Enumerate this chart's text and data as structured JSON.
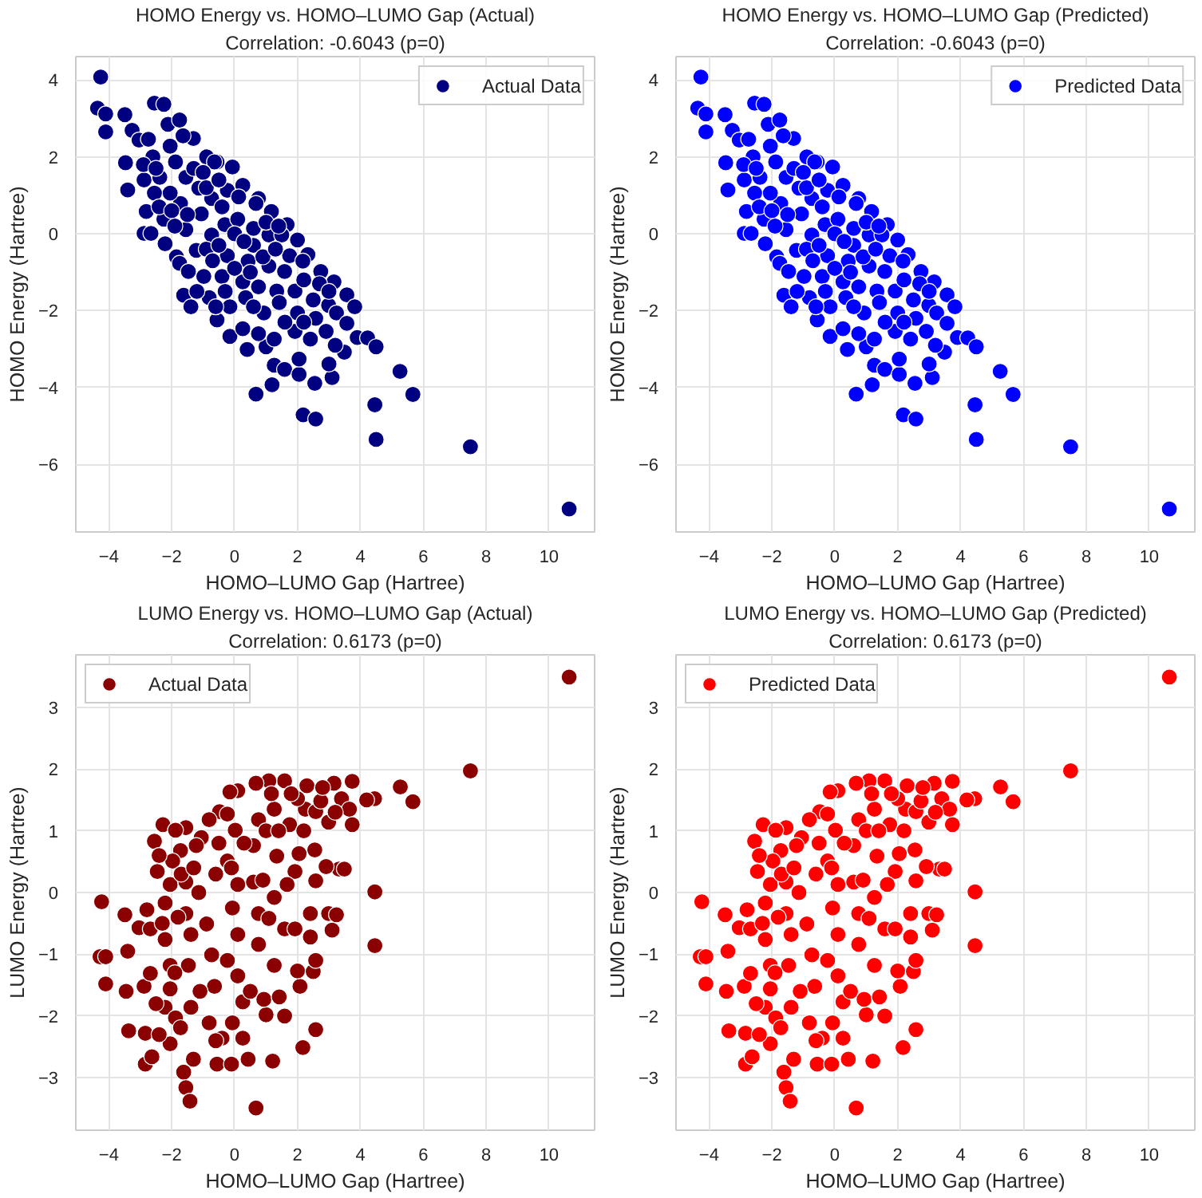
{
  "chart_data": [
    {
      "type": "scatter",
      "title": "HOMO Energy vs. HOMO–LUMO Gap (Actual)",
      "subtitle": "Correlation: -0.6043 (p=0)",
      "xlabel": "HOMO–LUMO Gap (Hartree)",
      "ylabel": "HOMO Energy (Hartree)",
      "xlim": [
        -5.05,
        11.45
      ],
      "ylim": [
        -7.76,
        4.61
      ],
      "xticks": [
        -4,
        -2,
        0,
        2,
        4,
        6,
        8,
        10
      ],
      "yticks": [
        -6,
        -4,
        -2,
        0,
        2,
        4
      ],
      "grid": true,
      "legend": "top right",
      "marker": "circle",
      "series": [
        {
          "name": "Actual Data",
          "color": "#000080",
          "x": [
            -4.26,
            -4.36,
            -4.1,
            -4.1,
            -3.49,
            -3.26,
            -3.47,
            -3.4,
            -3.04,
            -2.74,
            -2.6,
            -2.55,
            -2.25,
            -2.12,
            -2.88,
            -2.81,
            -2.88,
            -2.66,
            -2.25,
            -2.21,
            -1.85,
            -1.75,
            -1.62,
            -1.39,
            -0.81,
            -0.56,
            -0.15,
            0.4,
            0.68,
            1.19,
            1.26,
            1.0,
            1.59,
            2.05,
            2.05,
            2.18,
            2.58,
            2.55,
            3.1,
            3.0,
            3.49,
            3.9,
            4.23,
            4.5,
            4.46,
            4.5,
            5.26,
            5.67,
            7.5,
            10.64,
            -1.75,
            -1.31,
            -0.89,
            -0.56,
            -0.07,
            0.26,
            0.76,
            1.17,
            1.67,
            2.0,
            2.33,
            2.74,
            3.16,
            3.57,
            3.82,
            -1.88,
            -1.55,
            -1.14,
            -0.64,
            -0.23,
            0.13,
            0.68,
            -0.31,
            0.1,
            0.6,
            1.09,
            1.5,
            -0.73,
            -1.22,
            -0.23,
            0.43,
            1.09,
            1.75,
            2.17,
            -0.4,
            0.26,
            0.76,
            1.34,
            1.92,
            -0.15,
            0.35,
            0.93,
            1.42,
            2.0,
            2.5,
            2.99,
            3.24,
            2.58,
            0.26,
            0.76,
            1.26,
            1.92,
            2.41,
            2.91,
            3.57,
            -1.55,
            -1.72,
            -2.05,
            -2.55,
            -2.38,
            -2.05,
            -1.64,
            -1.06,
            -0.73,
            -1.47,
            -0.98,
            0.6,
            1.59,
            -2.9,
            -2.5,
            -2.4,
            -2.0,
            -1.9,
            -1.5,
            -1.3,
            -1.0,
            -0.9,
            -0.5,
            -0.4,
            -0.9,
            -0.5,
            0.0,
            0.3,
            0.0,
            -0.7,
            -1.2,
            -0.3,
            0.5,
            0.9,
            1.3,
            1.0,
            1.4,
            2.2,
            2.7,
            3.0,
            1.6,
            2.2,
            3.2,
            0.6,
            -0.6
          ],
          "values": [
            4.08,
            3.27,
            3.12,
            2.65,
            3.1,
            2.69,
            1.85,
            1.14,
            2.44,
            2.46,
            2.0,
            3.4,
            3.37,
            2.85,
            1.4,
            0.58,
            0.01,
            0.01,
            0.38,
            -0.26,
            -0.6,
            -0.77,
            -1.6,
            -1.9,
            -1.66,
            -2.24,
            -2.67,
            -3.01,
            -4.17,
            -3.93,
            -3.42,
            -2.94,
            -3.53,
            -3.66,
            -3.26,
            -4.71,
            -4.82,
            -3.89,
            -3.74,
            -3.39,
            -3.08,
            -2.7,
            -2.71,
            -2.94,
            -4.45,
            -5.35,
            -3.58,
            -4.18,
            -5.54,
            -7.16,
            2.96,
            2.48,
            2.0,
            1.87,
            1.74,
            1.26,
            0.92,
            0.58,
            0.24,
            -0.16,
            -0.54,
            -0.98,
            -1.25,
            -1.59,
            -1.9,
            1.87,
            1.47,
            1.19,
            1.87,
            1.13,
            0.96,
            0.79,
            0.24,
            0.38,
            0.14,
            -0.03,
            -0.03,
            -0.03,
            -0.43,
            -0.57,
            -0.71,
            -0.84,
            -0.57,
            -0.71,
            -1.11,
            -1.25,
            -1.38,
            -1.49,
            -1.49,
            -1.9,
            -1.66,
            -2.06,
            -1.79,
            -2.06,
            -1.72,
            -1.86,
            -2.06,
            -2.2,
            -2.47,
            -2.6,
            -2.74,
            -2.54,
            -2.74,
            -2.54,
            -2.33,
            0.11,
            0.79,
            1.06,
            1.06,
            1.47,
            2.28,
            2.55,
            0.52,
            0.92,
            -0.98,
            -1.11,
            -0.3,
            -0.98,
            1.8,
            1.7,
            0.7,
            0.6,
            0.2,
            0.5,
            1.7,
            1.6,
            1.2,
            1.4,
            0.7,
            -0.4,
            -0.3,
            0.0,
            -0.2,
            -0.9,
            -0.7,
            -1.5,
            -1.5,
            -1.0,
            -0.6,
            -0.4,
            0.3,
            0.2,
            -1.2,
            -1.3,
            -1.5,
            -2.3,
            -2.3,
            -2.9,
            -1.9,
            -1.9
          ]
        }
      ]
    },
    {
      "type": "scatter",
      "title": "HOMO Energy vs. HOMO–LUMO Gap (Predicted)",
      "subtitle": "Correlation: -0.6043 (p=0)",
      "xlabel": "HOMO–LUMO Gap (Hartree)",
      "ylabel": "HOMO Energy (Hartree)",
      "xlim": [
        -5.05,
        11.45
      ],
      "ylim": [
        -7.76,
        4.61
      ],
      "xticks": [
        -4,
        -2,
        0,
        2,
        4,
        6,
        8,
        10
      ],
      "yticks": [
        -6,
        -4,
        -2,
        0,
        2,
        4
      ],
      "grid": true,
      "legend": "top right",
      "marker": "circle",
      "series": [
        {
          "name": "Predicted Data",
          "color": "#0000ff",
          "x": [
            -4.26,
            -4.36,
            -4.1,
            -4.1,
            -3.49,
            -3.26,
            -3.47,
            -3.4,
            -3.04,
            -2.74,
            -2.6,
            -2.55,
            -2.25,
            -2.12,
            -2.88,
            -2.81,
            -2.88,
            -2.66,
            -2.25,
            -2.21,
            -1.85,
            -1.75,
            -1.62,
            -1.39,
            -0.81,
            -0.56,
            -0.15,
            0.4,
            0.68,
            1.19,
            1.26,
            1.0,
            1.59,
            2.05,
            2.05,
            2.18,
            2.58,
            2.55,
            3.1,
            3.0,
            3.49,
            3.9,
            4.23,
            4.5,
            4.46,
            4.5,
            5.26,
            5.67,
            7.5,
            10.64,
            -1.75,
            -1.31,
            -0.89,
            -0.56,
            -0.07,
            0.26,
            0.76,
            1.17,
            1.67,
            2.0,
            2.33,
            2.74,
            3.16,
            3.57,
            3.82,
            -1.88,
            -1.55,
            -1.14,
            -0.64,
            -0.23,
            0.13,
            0.68,
            -0.31,
            0.1,
            0.6,
            1.09,
            1.5,
            -0.73,
            -1.22,
            -0.23,
            0.43,
            1.09,
            1.75,
            2.17,
            -0.4,
            0.26,
            0.76,
            1.34,
            1.92,
            -0.15,
            0.35,
            0.93,
            1.42,
            2.0,
            2.5,
            2.99,
            3.24,
            2.58,
            0.26,
            0.76,
            1.26,
            1.92,
            2.41,
            2.91,
            3.57,
            -1.55,
            -1.72,
            -2.05,
            -2.55,
            -2.38,
            -2.05,
            -1.64,
            -1.06,
            -0.73,
            -1.47,
            -0.98,
            0.6,
            1.59,
            -2.9,
            -2.5,
            -2.4,
            -2.0,
            -1.9,
            -1.5,
            -1.3,
            -1.0,
            -0.9,
            -0.5,
            -0.4,
            -0.9,
            -0.5,
            0.0,
            0.3,
            0.0,
            -0.7,
            -1.2,
            -0.3,
            0.5,
            0.9,
            1.3,
            1.0,
            1.4,
            2.2,
            2.7,
            3.0,
            1.6,
            2.2,
            3.2,
            0.6,
            -0.6
          ],
          "values": [
            4.08,
            3.27,
            3.12,
            2.65,
            3.1,
            2.69,
            1.85,
            1.14,
            2.44,
            2.46,
            2.0,
            3.4,
            3.37,
            2.85,
            1.4,
            0.58,
            0.01,
            0.01,
            0.38,
            -0.26,
            -0.6,
            -0.77,
            -1.6,
            -1.9,
            -1.66,
            -2.24,
            -2.67,
            -3.01,
            -4.17,
            -3.93,
            -3.42,
            -2.94,
            -3.53,
            -3.66,
            -3.26,
            -4.71,
            -4.82,
            -3.89,
            -3.74,
            -3.39,
            -3.08,
            -2.7,
            -2.71,
            -2.94,
            -4.45,
            -5.35,
            -3.58,
            -4.18,
            -5.54,
            -7.16,
            2.96,
            2.48,
            2.0,
            1.87,
            1.74,
            1.26,
            0.92,
            0.58,
            0.24,
            -0.16,
            -0.54,
            -0.98,
            -1.25,
            -1.59,
            -1.9,
            1.87,
            1.47,
            1.19,
            1.87,
            1.13,
            0.96,
            0.79,
            0.24,
            0.38,
            0.14,
            -0.03,
            -0.03,
            -0.03,
            -0.43,
            -0.57,
            -0.71,
            -0.84,
            -0.57,
            -0.71,
            -1.11,
            -1.25,
            -1.38,
            -1.49,
            -1.49,
            -1.9,
            -1.66,
            -2.06,
            -1.79,
            -2.06,
            -1.72,
            -1.86,
            -2.06,
            -2.2,
            -2.47,
            -2.6,
            -2.74,
            -2.54,
            -2.74,
            -2.54,
            -2.33,
            0.11,
            0.79,
            1.06,
            1.06,
            1.47,
            2.28,
            2.55,
            0.52,
            0.92,
            -0.98,
            -1.11,
            -0.3,
            -0.98,
            1.8,
            1.7,
            0.7,
            0.6,
            0.2,
            0.5,
            1.7,
            1.6,
            1.2,
            1.4,
            0.7,
            -0.4,
            -0.3,
            0.0,
            -0.2,
            -0.9,
            -0.7,
            -1.5,
            -1.5,
            -1.0,
            -0.6,
            -0.4,
            0.3,
            0.2,
            -1.2,
            -1.3,
            -1.5,
            -2.3,
            -2.3,
            -2.9,
            -1.9,
            -1.9
          ]
        }
      ]
    },
    {
      "type": "scatter",
      "title": "LUMO Energy vs. HOMO–LUMO Gap (Actual)",
      "subtitle": "Correlation: 0.6173 (p=0)",
      "xlabel": "HOMO–LUMO Gap (Hartree)",
      "ylabel": "LUMO Energy (Hartree)",
      "xlim": [
        -5.05,
        11.45
      ],
      "ylim": [
        -3.85,
        3.85
      ],
      "xticks": [
        -4,
        -2,
        0,
        2,
        4,
        6,
        8,
        10
      ],
      "yticks": [
        -3,
        -2,
        -1,
        0,
        1,
        2,
        3
      ],
      "grid": true,
      "legend": "top left",
      "marker": "circle",
      "series": [
        {
          "name": "Actual Data",
          "color": "#8b0000",
          "x": [
            10.64,
            7.5,
            5.27,
            5.67,
            4.45,
            4.2,
            3.74,
            4.46,
            4.46,
            -4.23,
            -4.28,
            -4.1,
            -4.1,
            -3.49,
            -3.4,
            -3.45,
            -3.37,
            -3.04,
            -2.79,
            -2.68,
            -2.88,
            -2.84,
            -2.84,
            -2.63,
            -2.55,
            -2.28,
            -2.46,
            -2.68,
            -2.21,
            -1.62,
            -1.55,
            -1.42,
            0.68,
            -1.31,
            -0.56,
            -0.1,
            0.43,
            1.21,
            2.17,
            2.58,
            1.59,
            1.0,
            0.93,
            1.42,
            2.08,
            2.0,
            2.5,
            2.58,
            2.41,
            2.41,
            2.99,
            3.1,
            3.24,
            3.32,
            2.91,
            3.49,
            2.55,
            2.58,
            2.05,
            1.92,
            2.25,
            2.3,
            2.58,
            2.74,
            2.99,
            3.16,
            3.4,
            3.74,
            3.65,
            1.59,
            1.09,
            0.68,
            0.1,
            -0.15,
            -0.48,
            -0.81,
            -1.06,
            -1.22,
            -1.55,
            -1.88,
            -1.72,
            -1.97,
            -2.05,
            -2.21,
            -2.21,
            -2.05,
            -2.05,
            -1.88,
            -2.05,
            -1.72,
            -1.39,
            -1.47,
            -1.39,
            -1.55,
            -1.55,
            -1.14,
            -0.89,
            -0.73,
            -0.64,
            -0.81,
            -0.4,
            -0.07,
            0.26,
            0.26,
            0.1,
            -0.23,
            0.1,
            -0.07,
            0.1,
            -0.23,
            0.02,
            -0.23,
            0.6,
            0.6,
            0.76,
            0.76,
            1.26,
            1.09,
            1.26,
            1.34,
            1.67,
            1.59,
            1.92,
            1.26,
            0.76,
            1.75,
            2.0,
            1.17,
            -2.4,
            -2.3,
            -2.5,
            -2.4,
            -1.9,
            -1.8,
            -1.7,
            -1.3,
            -1.1,
            -0.6,
            -0.6,
            -0.5,
            -0.1,
            0.3,
            0.5,
            0.9,
            1.0,
            1.4,
            1.8,
            2.2,
            2.8,
            3.2
          ],
          "values": [
            3.49,
            1.97,
            1.71,
            1.47,
            1.52,
            1.5,
            1.8,
            0.01,
            -0.86,
            -0.15,
            -1.04,
            -1.04,
            -1.48,
            -0.36,
            -0.95,
            -1.6,
            -2.24,
            -0.57,
            -0.28,
            -0.59,
            -1.52,
            -2.28,
            -2.78,
            -2.66,
            0.83,
            1.1,
            0.34,
            -1.31,
            -1.86,
            -2.91,
            -3.16,
            -3.38,
            -3.49,
            -2.7,
            -2.78,
            -2.78,
            -2.7,
            -2.73,
            -2.51,
            -2.22,
            -2.0,
            -1.98,
            -1.73,
            -1.69,
            -1.52,
            -1.27,
            -1.28,
            -1.1,
            -0.72,
            -0.34,
            -0.34,
            -0.61,
            -0.36,
            0.38,
            0.42,
            0.38,
            0.69,
            0.19,
            0.63,
            0.34,
            1.35,
            1.73,
            1.31,
            1.48,
            1.14,
            1.77,
            1.52,
            1.1,
            1.35,
            1.81,
            1.81,
            1.77,
            1.65,
            1.63,
            1.31,
            1.18,
            0.89,
            0.76,
            1.05,
            1.01,
            0.68,
            0.51,
            0.13,
            -0.17,
            -0.76,
            -1.18,
            -1.56,
            -2.03,
            -2.45,
            -2.19,
            -1.86,
            -1.18,
            -0.68,
            -0.34,
            0.17,
            0.0,
            -0.51,
            -1.01,
            -1.52,
            -2.11,
            -2.36,
            -2.11,
            -2.36,
            -1.77,
            -1.35,
            -1.1,
            -0.68,
            -0.25,
            0.13,
            0.51,
            1.01,
            1.27,
            0.76,
            0.17,
            -0.34,
            -0.84,
            -1.18,
            -0.42,
            -0.08,
            0.59,
            0.13,
            -0.59,
            -0.59,
            1.35,
            1.18,
            1.1,
            1.52,
            1.6,
            0.6,
            -0.5,
            -1.8,
            -2.3,
            -1.3,
            -0.4,
            0.3,
            0.4,
            -1.6,
            -2.4,
            0.3,
            0.8,
            0.4,
            0.8,
            -1.6,
            0.2,
            1.0,
            1.0,
            1.6,
            1.0,
            1.7,
            1.3
          ]
        }
      ]
    },
    {
      "type": "scatter",
      "title": "LUMO Energy vs. HOMO–LUMO Gap (Predicted)",
      "subtitle": "Correlation: 0.6173 (p=0)",
      "xlabel": "HOMO–LUMO Gap (Hartree)",
      "ylabel": "LUMO Energy (Hartree)",
      "xlim": [
        -5.05,
        11.45
      ],
      "ylim": [
        -3.85,
        3.85
      ],
      "xticks": [
        -4,
        -2,
        0,
        2,
        4,
        6,
        8,
        10
      ],
      "yticks": [
        -3,
        -2,
        -1,
        0,
        1,
        2,
        3
      ],
      "grid": true,
      "legend": "top left",
      "marker": "circle",
      "series": [
        {
          "name": "Predicted Data",
          "color": "#ff0000",
          "x": [
            10.64,
            7.5,
            5.27,
            5.67,
            4.45,
            4.2,
            3.74,
            4.46,
            4.46,
            -4.23,
            -4.28,
            -4.1,
            -4.1,
            -3.49,
            -3.4,
            -3.45,
            -3.37,
            -3.04,
            -2.79,
            -2.68,
            -2.88,
            -2.84,
            -2.84,
            -2.63,
            -2.55,
            -2.28,
            -2.46,
            -2.68,
            -2.21,
            -1.62,
            -1.55,
            -1.42,
            0.68,
            -1.31,
            -0.56,
            -0.1,
            0.43,
            1.21,
            2.17,
            2.58,
            1.59,
            1.0,
            0.93,
            1.42,
            2.08,
            2.0,
            2.5,
            2.58,
            2.41,
            2.41,
            2.99,
            3.1,
            3.24,
            3.32,
            2.91,
            3.49,
            2.55,
            2.58,
            2.05,
            1.92,
            2.25,
            2.3,
            2.58,
            2.74,
            2.99,
            3.16,
            3.4,
            3.74,
            3.65,
            1.59,
            1.09,
            0.68,
            0.1,
            -0.15,
            -0.48,
            -0.81,
            -1.06,
            -1.22,
            -1.55,
            -1.88,
            -1.72,
            -1.97,
            -2.05,
            -2.21,
            -2.21,
            -2.05,
            -2.05,
            -1.88,
            -2.05,
            -1.72,
            -1.39,
            -1.47,
            -1.39,
            -1.55,
            -1.55,
            -1.14,
            -0.89,
            -0.73,
            -0.64,
            -0.81,
            -0.4,
            -0.07,
            0.26,
            0.26,
            0.1,
            -0.23,
            0.1,
            -0.07,
            0.1,
            -0.23,
            0.02,
            -0.23,
            0.6,
            0.6,
            0.76,
            0.76,
            1.26,
            1.09,
            1.26,
            1.34,
            1.67,
            1.59,
            1.92,
            1.26,
            0.76,
            1.75,
            2.0,
            1.17,
            -2.4,
            -2.3,
            -2.5,
            -2.4,
            -1.9,
            -1.8,
            -1.7,
            -1.3,
            -1.1,
            -0.6,
            -0.6,
            -0.5,
            -0.1,
            0.3,
            0.5,
            0.9,
            1.0,
            1.4,
            1.8,
            2.2,
            2.8,
            3.2
          ],
          "values": [
            3.49,
            1.97,
            1.71,
            1.47,
            1.52,
            1.5,
            1.8,
            0.01,
            -0.86,
            -0.15,
            -1.04,
            -1.04,
            -1.48,
            -0.36,
            -0.95,
            -1.6,
            -2.24,
            -0.57,
            -0.28,
            -0.59,
            -1.52,
            -2.28,
            -2.78,
            -2.66,
            0.83,
            1.1,
            0.34,
            -1.31,
            -1.86,
            -2.91,
            -3.16,
            -3.38,
            -3.49,
            -2.7,
            -2.78,
            -2.78,
            -2.7,
            -2.73,
            -2.51,
            -2.22,
            -2.0,
            -1.98,
            -1.73,
            -1.69,
            -1.52,
            -1.27,
            -1.28,
            -1.1,
            -0.72,
            -0.34,
            -0.34,
            -0.61,
            -0.36,
            0.38,
            0.42,
            0.38,
            0.69,
            0.19,
            0.63,
            0.34,
            1.35,
            1.73,
            1.31,
            1.48,
            1.14,
            1.77,
            1.52,
            1.1,
            1.35,
            1.81,
            1.81,
            1.77,
            1.65,
            1.63,
            1.31,
            1.18,
            0.89,
            0.76,
            1.05,
            1.01,
            0.68,
            0.51,
            0.13,
            -0.17,
            -0.76,
            -1.18,
            -1.56,
            -2.03,
            -2.45,
            -2.19,
            -1.86,
            -1.18,
            -0.68,
            -0.34,
            0.17,
            0.0,
            -0.51,
            -1.01,
            -1.52,
            -2.11,
            -2.36,
            -2.11,
            -2.36,
            -1.77,
            -1.35,
            -1.1,
            -0.68,
            -0.25,
            0.13,
            0.51,
            1.01,
            1.27,
            0.76,
            0.17,
            -0.34,
            -0.84,
            -1.18,
            -0.42,
            -0.08,
            0.59,
            0.13,
            -0.59,
            -0.59,
            1.35,
            1.18,
            1.1,
            1.52,
            1.6,
            0.6,
            -0.5,
            -1.8,
            -2.3,
            -1.3,
            -0.4,
            0.3,
            0.4,
            -1.6,
            -2.4,
            0.3,
            0.8,
            0.4,
            0.8,
            -1.6,
            0.2,
            1.0,
            1.0,
            1.6,
            1.0,
            1.7,
            1.3
          ]
        }
      ]
    }
  ]
}
